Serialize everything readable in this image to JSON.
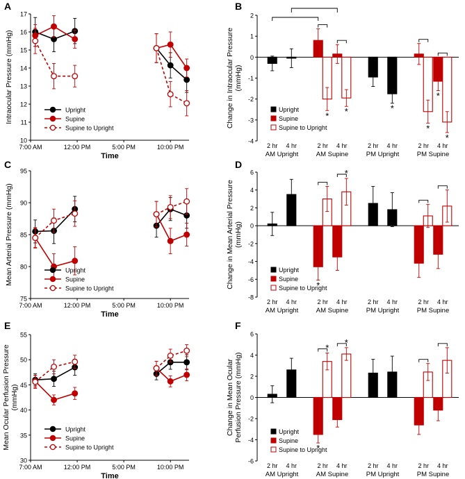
{
  "colors": {
    "upright": "#000000",
    "supine": "#c00000",
    "supine_to_upright": "#c00000",
    "axis": "#000000"
  },
  "chart_data": [
    {
      "panel": "A",
      "type": "line",
      "xlabel": "Time",
      "ylabel": "Intraocular Pressure (mmHg)",
      "ylim": [
        10,
        17
      ],
      "yticks": [
        "10",
        "11",
        "12",
        "13",
        "14",
        "15",
        "16",
        "17"
      ],
      "xlim": [
        7,
        24
      ],
      "xtick_values": [
        7,
        12,
        17,
        22
      ],
      "xticks": [
        "7:00 AM",
        "12:00 PM",
        "5:00 PM",
        "10:00 PM"
      ],
      "legend": [
        "Upright",
        "Supine",
        "Supine to Upright"
      ],
      "series": [
        {
          "name": "Upright",
          "style": "solid-black",
          "points": [
            [
              7.5,
              16.0,
              0.8
            ],
            [
              9.5,
              15.6,
              0.7
            ],
            [
              11.75,
              16.05,
              0.7
            ],
            [
              20.5,
              15.1,
              0.8
            ],
            [
              22,
              14.15,
              0.7
            ],
            [
              23.75,
              13.35,
              0.7
            ]
          ]
        },
        {
          "name": "Supine",
          "style": "solid-red",
          "points": [
            [
              7.5,
              15.8,
              0.6
            ],
            [
              9.5,
              16.3,
              0.6
            ],
            [
              11.75,
              15.6,
              0.5
            ],
            [
              20.5,
              15.1,
              0.8
            ],
            [
              22,
              15.3,
              0.7
            ],
            [
              23.75,
              14.0,
              0.5
            ]
          ]
        },
        {
          "name": "Supine to Upright",
          "style": "dashed-red-open",
          "points": [
            [
              7.5,
              15.5,
              0.7
            ],
            [
              9.5,
              13.55,
              0.7
            ],
            [
              11.75,
              13.55,
              0.6
            ],
            [
              20.5,
              15.1,
              0.8
            ],
            [
              22,
              12.55,
              0.7
            ],
            [
              23.75,
              12.05,
              0.7
            ]
          ]
        }
      ]
    },
    {
      "panel": "B",
      "type": "bar",
      "ylabel": "Change in Intraocular Pressure (mmHg)",
      "ylim": [
        -4,
        2
      ],
      "yticks": [
        "-4",
        "-3",
        "-2",
        "-1",
        "0",
        "1",
        "2"
      ],
      "groups": [
        "AM Upright",
        "AM Supine",
        "PM Upright",
        "PM Supine"
      ],
      "hour_labels": [
        "2 hr",
        "4 hr"
      ],
      "legend": [
        "Upright",
        "Supine",
        "Supine to Upright"
      ],
      "bars": [
        {
          "group": 0,
          "hr": 0,
          "kind": "Upright",
          "value": -0.3,
          "err": 0.35
        },
        {
          "group": 0,
          "hr": 1,
          "kind": "Upright",
          "value": -0.05,
          "err": 0.45
        },
        {
          "group": 1,
          "hr": 0,
          "kind": "Supine",
          "value": 0.8,
          "err": 0.55,
          "sig": false
        },
        {
          "group": 1,
          "hr": 0,
          "kind": "Supine to Upright",
          "value": -2.0,
          "err": 0.55,
          "sig": true
        },
        {
          "group": 1,
          "hr": 1,
          "kind": "Supine",
          "value": 0.15,
          "err": 0.45
        },
        {
          "group": 1,
          "hr": 1,
          "kind": "Supine to Upright",
          "value": -1.95,
          "err": 0.4,
          "sig": true
        },
        {
          "group": 2,
          "hr": 0,
          "kind": "Upright",
          "value": -0.95,
          "err": 0.45
        },
        {
          "group": 2,
          "hr": 1,
          "kind": "Upright",
          "value": -1.75,
          "err": 0.45,
          "sig": true
        },
        {
          "group": 3,
          "hr": 0,
          "kind": "Supine",
          "value": 0.15,
          "err": 0.5
        },
        {
          "group": 3,
          "hr": 0,
          "kind": "Supine to Upright",
          "value": -2.6,
          "err": 0.55,
          "sig": true
        },
        {
          "group": 3,
          "hr": 1,
          "kind": "Supine",
          "value": -1.15,
          "err": 0.45,
          "sig": true
        },
        {
          "group": 3,
          "hr": 1,
          "kind": "Supine to Upright",
          "value": -3.1,
          "err": 0.5,
          "sig": true
        }
      ],
      "sig_mark": "*"
    },
    {
      "panel": "C",
      "type": "line",
      "xlabel": "Time",
      "ylabel": "Mean Arterial Pressure (mmHg)",
      "ylim": [
        75,
        95
      ],
      "yticks": [
        "75",
        "80",
        "85",
        "90",
        "95"
      ],
      "xlim": [
        7,
        24
      ],
      "xtick_values": [
        7,
        12,
        17,
        22
      ],
      "xticks": [
        "7:00 AM",
        "12:00 PM",
        "5:00 PM",
        "10:00 PM"
      ],
      "legend": [
        "Upright",
        "Supine",
        "Supine to Upright"
      ],
      "series": [
        {
          "name": "Upright",
          "style": "solid-black",
          "points": [
            [
              7.5,
              85.5,
              1.8
            ],
            [
              9.5,
              85.6,
              2.0
            ],
            [
              11.75,
              89.0,
              2.0
            ],
            [
              20.5,
              86.4,
              1.8
            ],
            [
              22,
              89.0,
              1.8
            ],
            [
              23.75,
              88.0,
              2.0
            ]
          ]
        },
        {
          "name": "Supine",
          "style": "solid-red",
          "points": [
            [
              7.5,
              84.5,
              1.5
            ],
            [
              9.5,
              80.0,
              2.0
            ],
            [
              11.75,
              80.9,
              2.2
            ],
            [
              20.5,
              88.2,
              2.0
            ],
            [
              22,
              84.0,
              2.0
            ],
            [
              23.75,
              85.0,
              1.8
            ]
          ]
        },
        {
          "name": "Supine to Upright",
          "style": "dashed-red-open",
          "points": [
            [
              7.5,
              84.5,
              1.6
            ],
            [
              9.5,
              87.2,
              1.8
            ],
            [
              11.75,
              88.3,
              2.0
            ],
            [
              20.5,
              88.2,
              2.0
            ],
            [
              22,
              89.3,
              1.8
            ],
            [
              23.75,
              90.2,
              2.0
            ]
          ]
        }
      ]
    },
    {
      "panel": "D",
      "type": "bar",
      "ylabel": "Change in Mean Arterial Pressure (mmHg)",
      "ylim": [
        -8,
        6
      ],
      "yticks": [
        "-8",
        "-6",
        "-4",
        "-2",
        "0",
        "2",
        "4",
        "6"
      ],
      "groups": [
        "AM Upright",
        "AM Supine",
        "PM Upright",
        "PM Supine"
      ],
      "hour_labels": [
        "2 hr",
        "4 hr"
      ],
      "legend": [
        "Upright",
        "Supine",
        "Supine to Upright"
      ],
      "bars": [
        {
          "group": 0,
          "hr": 0,
          "kind": "Upright",
          "value": 0.2,
          "err": 1.3
        },
        {
          "group": 0,
          "hr": 1,
          "kind": "Upright",
          "value": 3.5,
          "err": 1.7
        },
        {
          "group": 1,
          "hr": 0,
          "kind": "Supine",
          "value": -4.6,
          "err": 1.5,
          "sig": true
        },
        {
          "group": 1,
          "hr": 0,
          "kind": "Supine to Upright",
          "value": 3.0,
          "err": 1.4
        },
        {
          "group": 1,
          "hr": 1,
          "kind": "Supine",
          "value": -3.5,
          "err": 1.5
        },
        {
          "group": 1,
          "hr": 1,
          "kind": "Supine to Upright",
          "value": 3.8,
          "err": 1.5,
          "sig": true
        },
        {
          "group": 2,
          "hr": 0,
          "kind": "Upright",
          "value": 2.5,
          "err": 1.9
        },
        {
          "group": 2,
          "hr": 1,
          "kind": "Upright",
          "value": 1.8,
          "err": 1.9
        },
        {
          "group": 3,
          "hr": 0,
          "kind": "Supine",
          "value": -4.2,
          "err": 1.6
        },
        {
          "group": 3,
          "hr": 0,
          "kind": "Supine to Upright",
          "value": 1.1,
          "err": 1.3
        },
        {
          "group": 3,
          "hr": 1,
          "kind": "Supine",
          "value": -3.2,
          "err": 1.6
        },
        {
          "group": 3,
          "hr": 1,
          "kind": "Supine to Upright",
          "value": 2.2,
          "err": 1.8
        }
      ],
      "sig_mark": "*"
    },
    {
      "panel": "E",
      "type": "line",
      "xlabel": "Time",
      "ylabel": "Mean Ocular Perfusion Pressure (mmHg)",
      "ylim": [
        30,
        55
      ],
      "yticks": [
        "30",
        "35",
        "40",
        "45",
        "50",
        "55"
      ],
      "xlim": [
        7,
        24
      ],
      "xtick_values": [
        7,
        12,
        17,
        22
      ],
      "xticks": [
        "7:00 AM",
        "12:00 PM",
        "5:00 PM",
        "10:00 PM"
      ],
      "legend": [
        "Upright",
        "Supine",
        "Supine to Upright"
      ],
      "series": [
        {
          "name": "Upright",
          "style": "solid-black",
          "points": [
            [
              7.5,
              46.0,
              1.2
            ],
            [
              9.5,
              46.2,
              1.5
            ],
            [
              11.75,
              48.5,
              1.6
            ],
            [
              20.5,
              47.2,
              1.2
            ],
            [
              22,
              49.5,
              1.4
            ],
            [
              23.75,
              49.5,
              1.5
            ]
          ]
        },
        {
          "name": "Supine",
          "style": "solid-red",
          "points": [
            [
              7.5,
              45.7,
              1.2
            ],
            [
              9.5,
              42.0,
              1.0
            ],
            [
              11.75,
              43.3,
              1.2
            ],
            [
              20.5,
              48.3,
              1.4
            ],
            [
              22,
              45.7,
              1.1
            ],
            [
              23.75,
              47.0,
              1.2
            ]
          ]
        },
        {
          "name": "Supine to Upright",
          "style": "dashed-red-open",
          "points": [
            [
              7.5,
              45.6,
              1.3
            ],
            [
              9.5,
              48.6,
              1.4
            ],
            [
              11.75,
              49.6,
              1.3
            ],
            [
              20.5,
              48.3,
              1.4
            ],
            [
              22,
              50.8,
              1.3
            ],
            [
              23.75,
              51.8,
              1.2
            ]
          ]
        }
      ]
    },
    {
      "panel": "F",
      "type": "bar",
      "ylabel": "Change in Mean Ocular Perfusion Pressure (mmHg)",
      "ylim": [
        -6,
        6
      ],
      "yticks": [
        "-6",
        "-4",
        "-2",
        "0",
        "2",
        "4",
        "6"
      ],
      "groups": [
        "AM Upright",
        "AM Supine",
        "PM Upright",
        "PM Supine"
      ],
      "hour_labels": [
        "2 hr",
        "4 hr"
      ],
      "legend": [
        "Upright",
        "Supine",
        "Supine to Upright"
      ],
      "bars": [
        {
          "group": 0,
          "hr": 0,
          "kind": "Upright",
          "value": 0.3,
          "err": 0.8
        },
        {
          "group": 0,
          "hr": 1,
          "kind": "Upright",
          "value": 2.6,
          "err": 1.1
        },
        {
          "group": 1,
          "hr": 0,
          "kind": "Supine",
          "value": -3.5,
          "err": 0.8,
          "sig": true
        },
        {
          "group": 1,
          "hr": 0,
          "kind": "Supine to Upright",
          "value": 3.4,
          "err": 0.8,
          "sig": true
        },
        {
          "group": 1,
          "hr": 1,
          "kind": "Supine",
          "value": -2.1,
          "err": 0.7
        },
        {
          "group": 1,
          "hr": 1,
          "kind": "Supine to Upright",
          "value": 4.1,
          "err": 0.6,
          "sig": true
        },
        {
          "group": 2,
          "hr": 0,
          "kind": "Upright",
          "value": 2.3,
          "err": 1.3
        },
        {
          "group": 2,
          "hr": 1,
          "kind": "Upright",
          "value": 2.4,
          "err": 1.5
        },
        {
          "group": 3,
          "hr": 0,
          "kind": "Supine",
          "value": -2.6,
          "err": 0.9
        },
        {
          "group": 3,
          "hr": 0,
          "kind": "Supine to Upright",
          "value": 2.4,
          "err": 0.8
        },
        {
          "group": 3,
          "hr": 1,
          "kind": "Supine",
          "value": -1.2,
          "err": 1.0
        },
        {
          "group": 3,
          "hr": 1,
          "kind": "Supine to Upright",
          "value": 3.5,
          "err": 1.2
        }
      ],
      "sig_mark": "*"
    }
  ]
}
